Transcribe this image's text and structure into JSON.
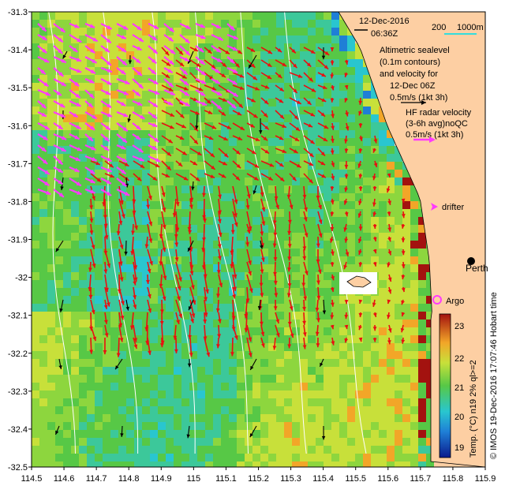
{
  "header": {
    "date": "12-Dec-2016",
    "time": "06:36Z"
  },
  "scale": {
    "value": "200",
    "unit": "1000m"
  },
  "legend": {
    "altimetry_lines": [
      "Altimetric sealevel",
      "(0.1m contours)",
      "and velocity for",
      "12-Dec 06Z",
      "0.5m/s (1kt 3h)"
    ],
    "hf_lines": [
      "HF radar velocity",
      "(3-6h avg)noQC",
      "0.5m/s (1kt 3h)"
    ],
    "drifter": "drifter",
    "argo": "Argo",
    "perth": "Perth"
  },
  "colorbar": {
    "label": "Temp. (°C) n19 2% ql>=2",
    "ticks": [
      "23",
      "22",
      "21",
      "20",
      "19"
    ]
  },
  "credit": "© IMOS 19-Dec-2016 17:07:46 Hobart time",
  "axes": {
    "x_ticks": [
      "114.5",
      "114.6",
      "114.7",
      "114.8",
      "114.9",
      "115",
      "115.1",
      "115.2",
      "115.3",
      "115.4",
      "115.5",
      "115.6",
      "115.7",
      "115.8",
      "115.9"
    ],
    "y_ticks": [
      "-31.3",
      "-31.4",
      "-31.5",
      "-31.6",
      "-31.7",
      "-31.8",
      "-31.9",
      "-32",
      "-32.1",
      "-32.2",
      "-32.3",
      "-32.4",
      "-32.5"
    ],
    "lon_range": [
      114.5,
      115.9
    ],
    "lat_range": [
      -32.5,
      -31.3
    ]
  },
  "colors": {
    "land": "#fdcfa3",
    "hf_arrow": "#ff3aff",
    "alt_arrow": "#000000",
    "radar_arrow": "#e81010",
    "contour": "#ffffff",
    "scale_bar": "#33dddd"
  }
}
